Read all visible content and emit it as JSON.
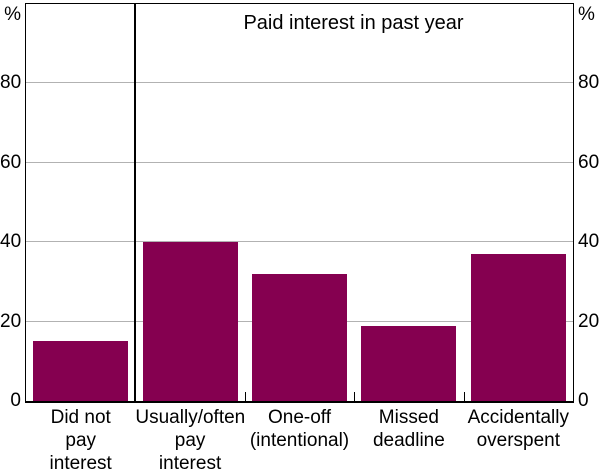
{
  "chart_data": {
    "type": "bar",
    "title": "Paid interest in past year",
    "y_unit_left": "%",
    "y_unit_right": "%",
    "xlabel": "",
    "ylabel": "",
    "ylim": [
      0,
      100
    ],
    "yticks": [
      0,
      20,
      40,
      60,
      80
    ],
    "grid": "horizontal",
    "legend": "none",
    "bar_color": "#850050",
    "gridline_color": "#b2b2b2",
    "axis_color": "#000000",
    "categories": [
      "Did not pay interest",
      "Usually/often pay interest",
      "One-off (intentional)",
      "Missed deadline",
      "Accidentally overspent"
    ],
    "category_label_lines": [
      [
        "Did not",
        "pay",
        "interest"
      ],
      [
        "Usually/often",
        "pay",
        "interest"
      ],
      [
        "One-off",
        "(intentional)"
      ],
      [
        "Missed",
        "deadline"
      ],
      [
        "Accidentally",
        "overspent"
      ]
    ],
    "values": [
      15,
      40,
      32,
      19,
      37
    ],
    "divider_after_category_index": 0
  }
}
